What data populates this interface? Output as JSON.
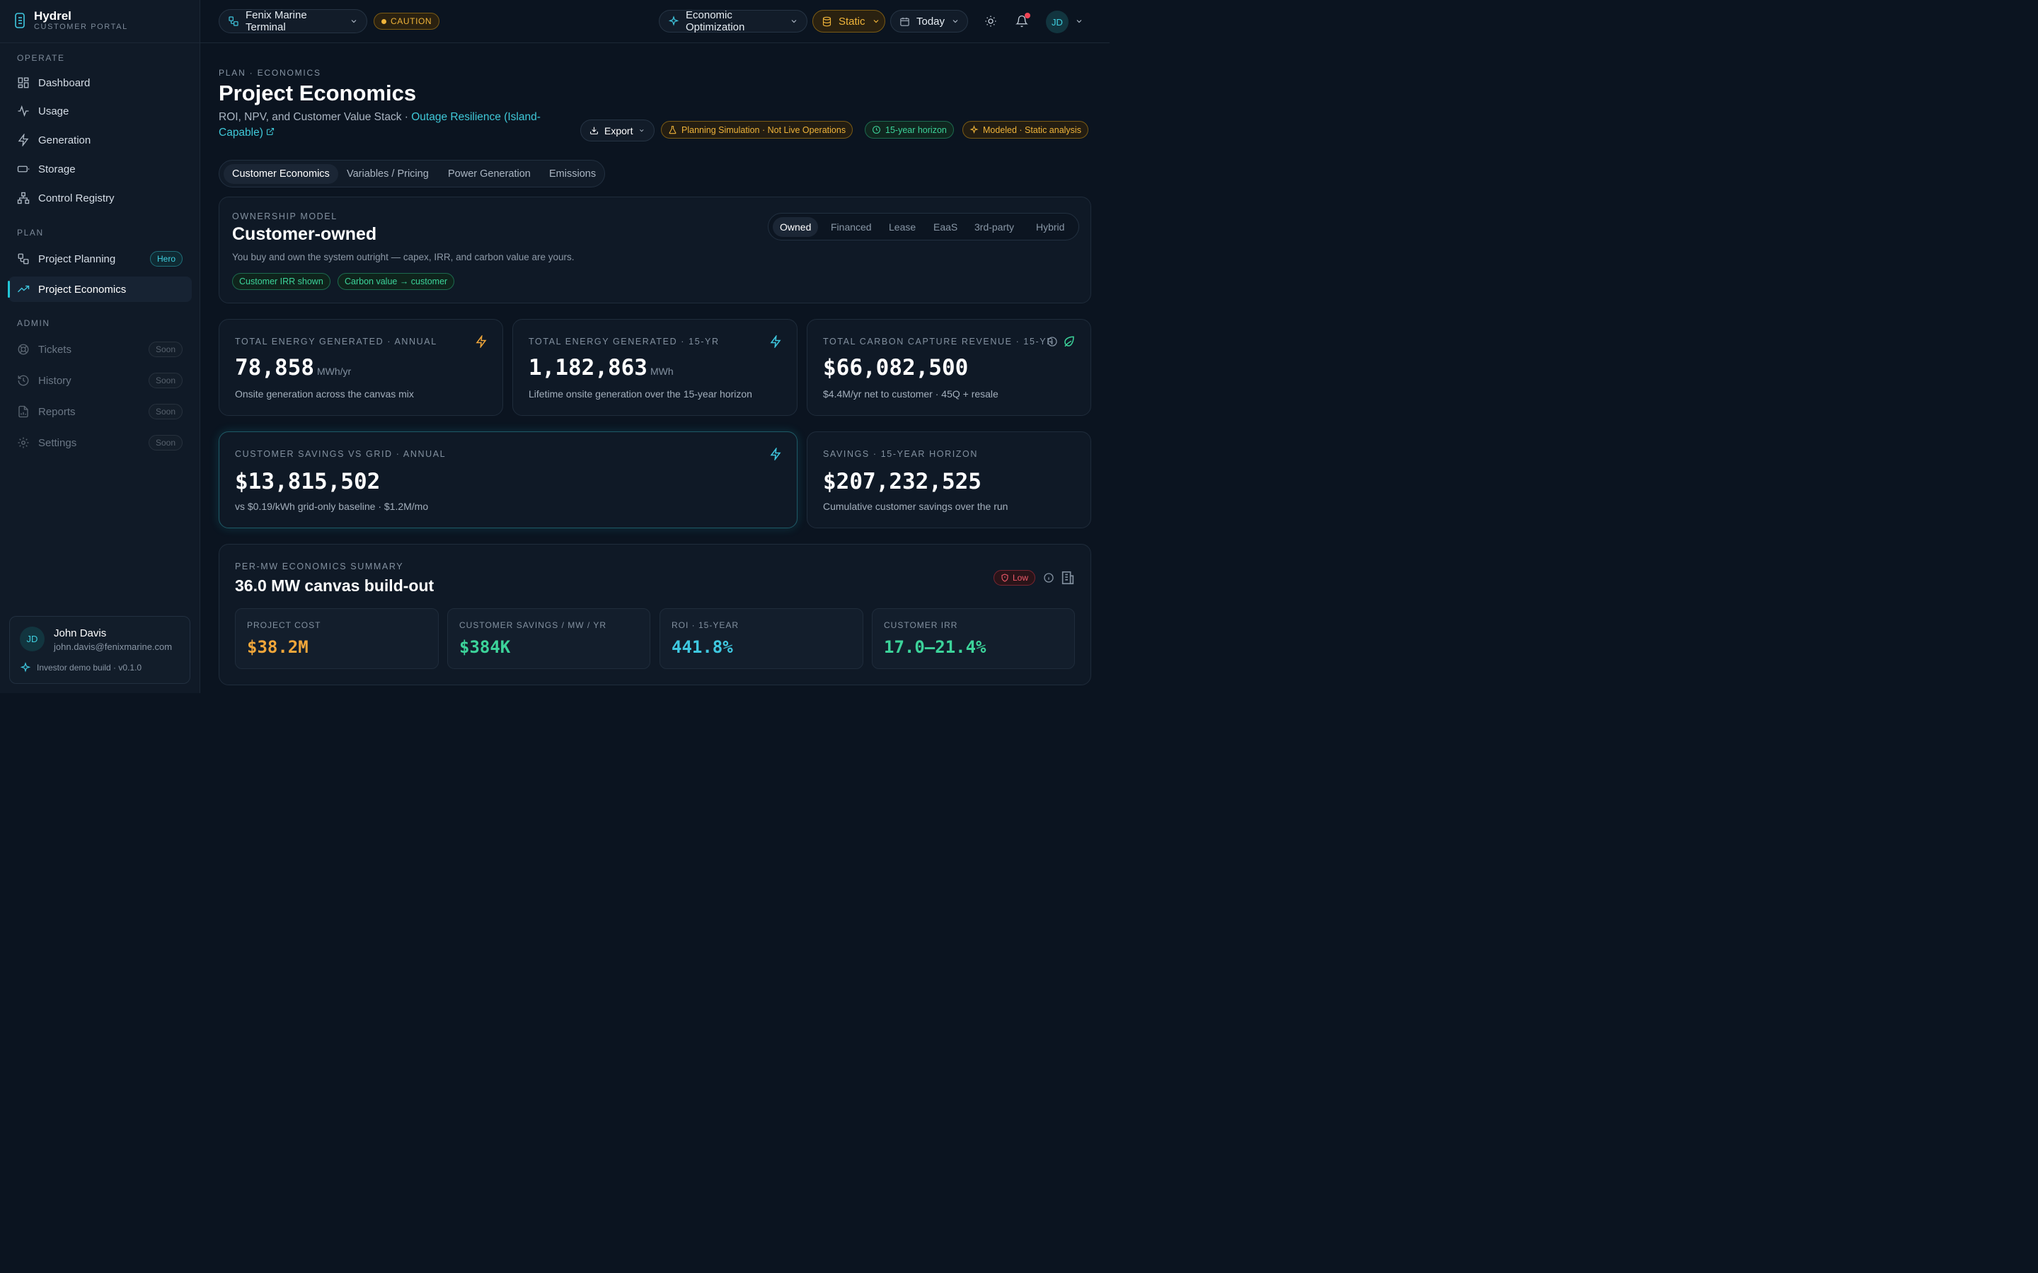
{
  "brand": {
    "name": "Hydrel",
    "subtitle": "CUSTOMER PORTAL"
  },
  "sidebar": {
    "sections": {
      "operate": "OPERATE",
      "plan": "PLAN",
      "admin": "ADMIN"
    },
    "operate": [
      {
        "label": "Dashboard",
        "icon": "dashboard-icon"
      },
      {
        "label": "Usage",
        "icon": "activity-icon"
      },
      {
        "label": "Generation",
        "icon": "bolt-icon"
      },
      {
        "label": "Storage",
        "icon": "battery-icon"
      },
      {
        "label": "Control Registry",
        "icon": "network-icon"
      }
    ],
    "plan": [
      {
        "label": "Project Planning",
        "icon": "workflow-icon",
        "badge": "Hero"
      },
      {
        "label": "Project Economics",
        "icon": "trending-up-icon",
        "active": true
      }
    ],
    "admin": [
      {
        "label": "Tickets",
        "icon": "lifebuoy-icon",
        "badge": "Soon"
      },
      {
        "label": "History",
        "icon": "history-icon",
        "badge": "Soon"
      },
      {
        "label": "Reports",
        "icon": "file-chart-icon",
        "badge": "Soon"
      },
      {
        "label": "Settings",
        "icon": "gear-icon",
        "badge": "Soon"
      }
    ]
  },
  "user": {
    "initials": "JD",
    "name": "John Davis",
    "email": "john.davis@fenixmarine.com",
    "build": "Investor demo build · v0.1.0"
  },
  "topbar": {
    "site": "Fenix Marine Terminal",
    "status": "CAUTION",
    "mode": "Economic Optimization",
    "data_source": "Static",
    "range": "Today",
    "avatar": "JD"
  },
  "header": {
    "eyebrow": "PLAN · ECONOMICS",
    "title": "Project Economics",
    "subtitle": "ROI, NPV, and Customer Value Stack · ",
    "subtitle_link": "Outage Resilience (Island-Capable)",
    "export": "Export",
    "tags": [
      "Planning Simulation · Not Live Operations",
      "15-year horizon",
      "Modeled · Static analysis"
    ]
  },
  "tabs": [
    "Customer Economics",
    "Variables / Pricing",
    "Power Generation",
    "Emissions"
  ],
  "ownership": {
    "label": "OWNERSHIP MODEL",
    "title": "Customer-owned",
    "description": "You buy and own the system outright — capex, IRR, and carbon value are yours.",
    "chips": [
      "Customer IRR shown",
      "Carbon value → customer"
    ],
    "options": [
      "Owned",
      "Financed",
      "Lease",
      "EaaS",
      "3rd-party",
      "Hybrid"
    ],
    "selected": "Owned"
  },
  "metrics": {
    "annual_energy": {
      "label": "TOTAL ENERGY GENERATED · ANNUAL",
      "value": "78,858",
      "unit": "MWh/yr",
      "desc": "Onsite generation across the canvas mix"
    },
    "lifetime_energy": {
      "label": "TOTAL ENERGY GENERATED · 15-YR",
      "value": "1,182,863",
      "unit": "MWh",
      "desc": "Lifetime onsite generation over the 15-year horizon"
    },
    "carbon_revenue": {
      "label": "TOTAL CARBON CAPTURE REVENUE · 15-YR",
      "value": "$66,082,500",
      "desc": "$4.4M/yr net to customer · 45Q + resale"
    },
    "annual_savings": {
      "label": "CUSTOMER SAVINGS VS GRID · ANNUAL",
      "value": "$13,815,502",
      "desc": "vs $0.19/kWh grid-only baseline · $1.2M/mo"
    },
    "horizon_savings": {
      "label": "SAVINGS · 15-YEAR HORIZON",
      "value": "$207,232,525",
      "desc": "Cumulative customer savings over the run"
    }
  },
  "summary": {
    "label": "PER-MW ECONOMICS SUMMARY",
    "title": "36.0 MW canvas build-out",
    "risk": "Low",
    "items": [
      {
        "label": "PROJECT COST",
        "value": "$38.2M",
        "color": "#f0a63a"
      },
      {
        "label": "CUSTOMER SAVINGS / MW / YR",
        "value": "$384K",
        "color": "#3cd39a"
      },
      {
        "label": "ROI · 15-YEAR",
        "value": "441.8%",
        "color": "#3fc8e0"
      },
      {
        "label": "CUSTOMER IRR",
        "value": "17.0–21.4%",
        "color": "#3cd39a"
      }
    ]
  }
}
